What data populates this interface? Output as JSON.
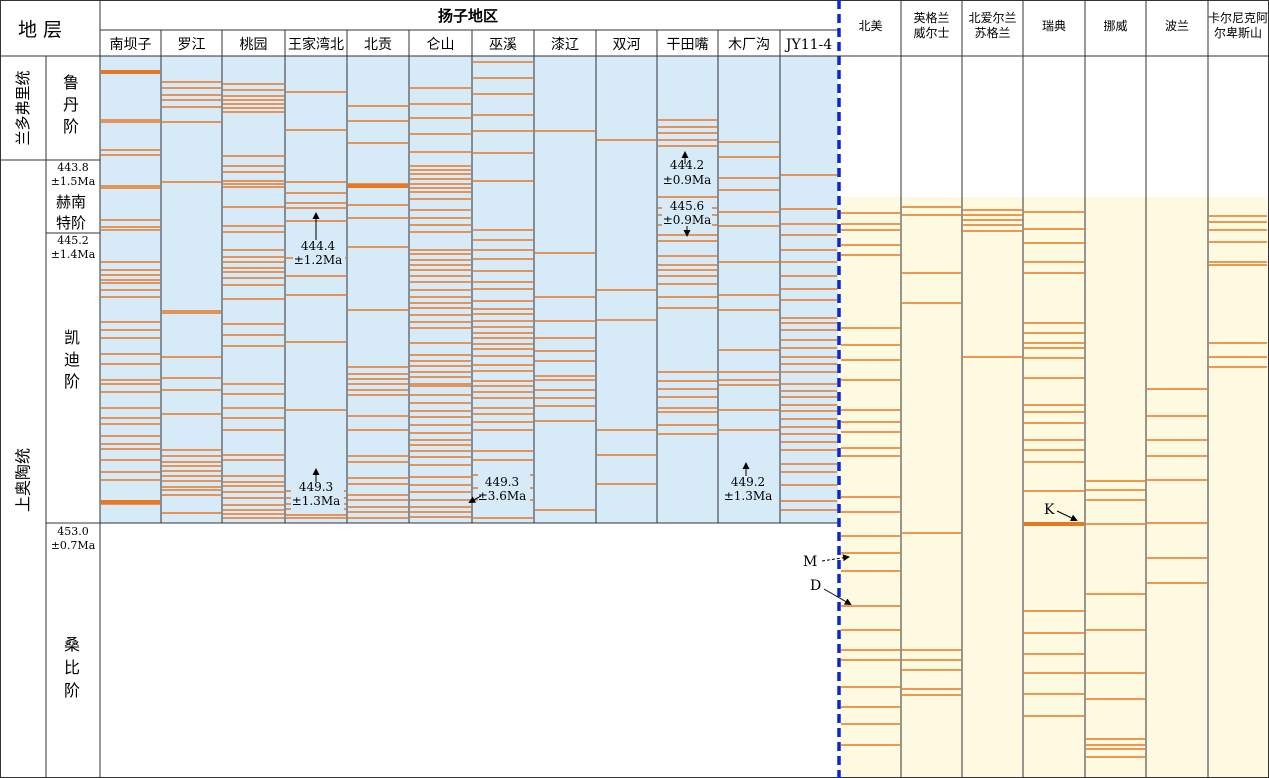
{
  "header": {
    "strata": "地 层",
    "yangtze_region": "扬子地区"
  },
  "stages": {
    "series_llandovery": "兰多弗里统",
    "series_upper_ordovician": "上奥陶统",
    "rhuddanian": "鲁丹阶",
    "hirnantian": "赫南特阶",
    "katian": "凯迪阶",
    "sandbian": "桑比阶"
  },
  "boundary_ages": [
    {
      "age": "443.8",
      "err": "±1.5Ma"
    },
    {
      "age": "445.2",
      "err": "±1.4Ma"
    },
    {
      "age": "453.0",
      "err": "±0.7Ma"
    }
  ],
  "yangtze_columns": [
    {
      "name": "南坝子",
      "beds": [
        72,
        120,
        122,
        150,
        155,
        186,
        188,
        220,
        227,
        230,
        262,
        270,
        275,
        280,
        283,
        290,
        297,
        322,
        330,
        338,
        354,
        364,
        380,
        384,
        392,
        408,
        418,
        424,
        436,
        444,
        449,
        460,
        472,
        480,
        502,
        504
      ]
    },
    {
      "name": "罗江",
      "beds": [
        82,
        88,
        95,
        100,
        107,
        122,
        182,
        311,
        313,
        357,
        378,
        390,
        414,
        450,
        456,
        462,
        466,
        471,
        476,
        481,
        487,
        490,
        495,
        513
      ]
    },
    {
      "name": "桃园",
      "beds": [
        84,
        90,
        96,
        100,
        104,
        108,
        112,
        156,
        166,
        172,
        181,
        184,
        187,
        207,
        226,
        232,
        250,
        257,
        262,
        268,
        272,
        278,
        285,
        299,
        324,
        335,
        346,
        384,
        394,
        408,
        418,
        430,
        455,
        460,
        476,
        482,
        486,
        492,
        498,
        505,
        510,
        514,
        518
      ]
    },
    {
      "name": "王家湾北",
      "beds": [
        92,
        130,
        182,
        193,
        203,
        208,
        221,
        258,
        276,
        295,
        342,
        410,
        491,
        498,
        504,
        509,
        515,
        518
      ]
    },
    {
      "name": "北贡",
      "beds": [
        106,
        121,
        143,
        184,
        186,
        205,
        218,
        247,
        310,
        367,
        374,
        379,
        384,
        390,
        395,
        416,
        430,
        456,
        462,
        478,
        484,
        495,
        500,
        507,
        512,
        518
      ]
    },
    {
      "name": "仑山",
      "beds": [
        88,
        104,
        118,
        134,
        152,
        166,
        170,
        174,
        179,
        184,
        188,
        192,
        199,
        210,
        218,
        225,
        232,
        250,
        254,
        260,
        265,
        270,
        276,
        282,
        290,
        297,
        303,
        308,
        315,
        322,
        328,
        343,
        355,
        361,
        366,
        372,
        377,
        384,
        386,
        395,
        403,
        411,
        417,
        425,
        433,
        440,
        445,
        451,
        457,
        465,
        477,
        485,
        492,
        500,
        507,
        512,
        517
      ]
    },
    {
      "name": "巫溪",
      "beds": [
        62,
        78,
        94,
        115,
        131,
        153,
        181,
        230,
        240,
        250,
        259,
        271,
        282,
        289,
        301,
        309,
        314,
        321,
        327,
        333,
        338,
        344,
        349,
        356,
        365,
        371,
        381,
        386,
        392,
        398,
        408,
        414,
        422,
        430,
        451,
        460,
        475,
        488,
        500,
        518
      ]
    },
    {
      "name": "漆辽",
      "beds": [
        131,
        253,
        297,
        321,
        338,
        351,
        361,
        376,
        380,
        390,
        398,
        406,
        421,
        510
      ]
    },
    {
      "name": "双河",
      "beds": [
        140,
        290,
        320,
        430,
        455,
        484
      ]
    },
    {
      "name": "干田嘴",
      "beds": [
        120,
        127,
        133,
        140,
        146,
        197,
        208,
        215,
        225,
        235,
        241,
        256,
        265,
        270,
        276,
        284,
        297,
        308,
        372,
        381,
        389,
        397,
        408,
        412,
        425,
        434
      ]
    },
    {
      "name": "木厂沟",
      "beds": [
        142,
        157,
        178,
        190,
        212,
        226,
        262,
        295,
        310,
        350,
        372,
        380,
        385,
        410,
        430
      ]
    },
    {
      "name": "JY11-4",
      "beds": [
        175,
        209,
        224,
        235,
        250,
        262,
        276,
        289,
        300,
        318,
        323,
        330,
        340,
        348,
        357,
        364,
        372,
        384,
        391,
        397,
        405,
        411,
        419,
        427,
        434,
        442,
        450,
        464,
        472,
        485,
        501,
        510
      ]
    }
  ],
  "other_columns": [
    {
      "name": "北美",
      "beds": [
        213,
        224,
        230,
        245,
        255,
        328,
        345,
        360,
        380,
        410,
        422,
        432,
        448,
        456,
        497,
        512,
        536,
        553,
        571,
        606,
        630,
        650,
        660,
        687,
        707,
        724,
        745
      ]
    },
    {
      "name": "英格兰威尔士",
      "beds": [
        207,
        215,
        273,
        303,
        533,
        650,
        660,
        670,
        689,
        695
      ]
    },
    {
      "name": "北爱尔兰苏格兰",
      "beds": [
        210,
        215,
        220,
        225,
        231,
        357
      ]
    },
    {
      "name": "瑞典",
      "beds": [
        212,
        229,
        243,
        262,
        273,
        323,
        333,
        343,
        348,
        358,
        378,
        405,
        412,
        423,
        440,
        450,
        462,
        491,
        524,
        611,
        633,
        654,
        673,
        694,
        716
      ]
    },
    {
      "name": "挪威",
      "beds": [
        481,
        490,
        500,
        524,
        594,
        630,
        673,
        699,
        739,
        745,
        749,
        757
      ]
    },
    {
      "name": "波兰",
      "beds": [
        389,
        416,
        440,
        456,
        480,
        523,
        558,
        583
      ]
    },
    {
      "name": "卡尔尼克阿尔卑斯山",
      "beds": [
        216,
        222,
        230,
        242,
        262,
        265,
        343,
        357,
        367
      ]
    }
  ],
  "radiometric_ages": [
    {
      "age": "444.2",
      "err": "±0.9Ma"
    },
    {
      "age": "445.6",
      "err": "±0.9Ma"
    },
    {
      "age": "444.4",
      "err": "±1.2Ma"
    },
    {
      "age": "449.3",
      "err": "±1.3Ma"
    },
    {
      "age": "449.3",
      "err": "±3.6Ma"
    },
    {
      "age": "449.2",
      "err": "±1.3Ma"
    }
  ],
  "markers": [
    "M",
    "D",
    "K"
  ],
  "colors": {
    "bed": "#e87722",
    "yangtze_fill": "#d6eaf8",
    "other_fill": "#fef9e1",
    "divider": "#0a24d8"
  }
}
